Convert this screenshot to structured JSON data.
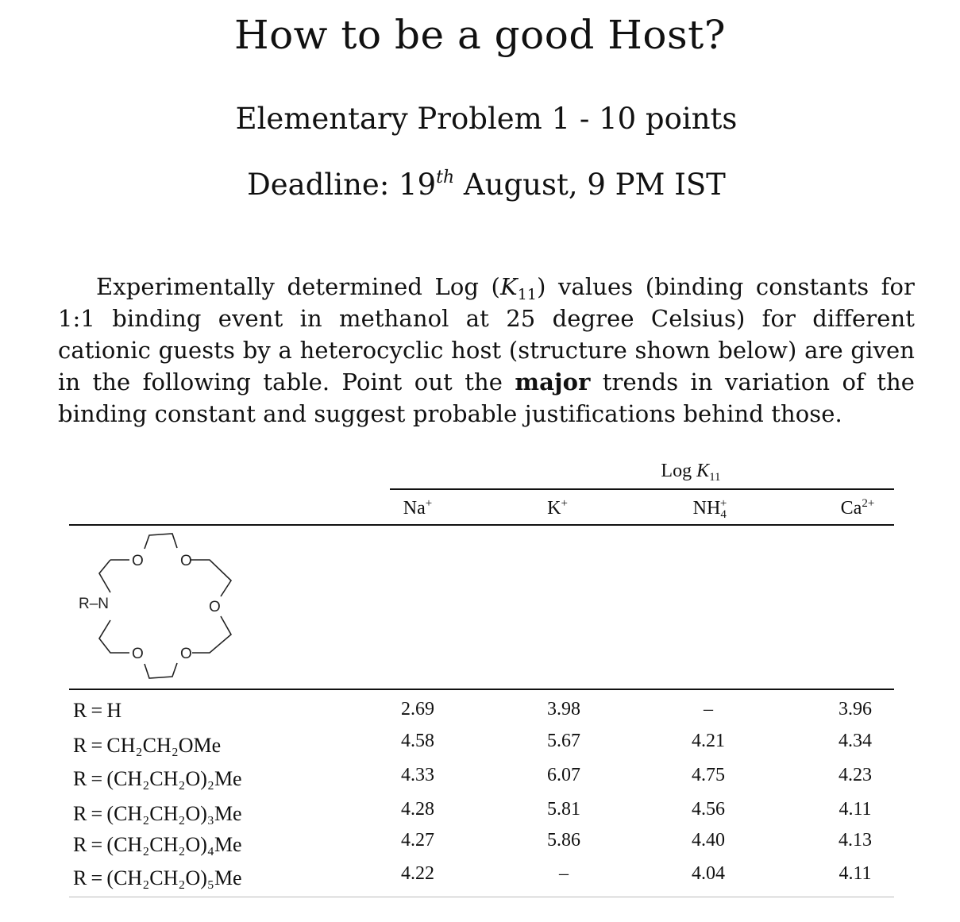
{
  "header": {
    "title": "How to be a good Host?",
    "subtitle": "Elementary Problem 1 - 10 points",
    "deadline_prefix": "Deadline: 19",
    "deadline_sup": "th",
    "deadline_suffix": " August, 9 PM IST"
  },
  "paragraph": {
    "part1": "Experimentally determined Log (",
    "k_symbol": "K",
    "k_sub": "11",
    "part2": ") values (binding constants for 1:1 binding event in methanol at 25 degree Celsius) for different cationic guests by a heterocyclic host (structure shown below) are given in the following table. Point out the ",
    "bold": "major",
    "part3": " trends in variation of the binding constant and suggest probable justifications behind those."
  },
  "table": {
    "group_header": {
      "prefix": "Log ",
      "k": "K",
      "sub": "11"
    },
    "columns": [
      {
        "base": "Na",
        "sub": "",
        "sup": "+"
      },
      {
        "base": "K",
        "sub": "",
        "sup": "+"
      },
      {
        "base": "NH",
        "sub": "4",
        "sup": "+"
      },
      {
        "base": "Ca",
        "sub": "",
        "sup": "2+"
      }
    ],
    "structure": {
      "n_label": "R–N",
      "o_label": "O"
    },
    "rows": [
      {
        "label": "R = H",
        "values": [
          "2.69",
          "3.98",
          "–",
          "3.96"
        ]
      },
      {
        "label": "R = CH₂CH₂OMe",
        "values": [
          "4.58",
          "5.67",
          "4.21",
          "4.34"
        ]
      },
      {
        "label": "R = (CH₂CH₂O)₂Me",
        "values": [
          "4.33",
          "6.07",
          "4.75",
          "4.23"
        ]
      },
      {
        "label": "R = (CH₂CH₂O)₃Me",
        "values": [
          "4.28",
          "5.81",
          "4.56",
          "4.11"
        ]
      },
      {
        "label": "R = (CH₂CH₂O)₄Me",
        "values": [
          "4.27",
          "5.86",
          "4.40",
          "4.13"
        ]
      },
      {
        "label": "R = (CH₂CH₂O)₅Me",
        "values": [
          "4.22",
          "–",
          "4.04",
          "4.11"
        ]
      }
    ]
  }
}
